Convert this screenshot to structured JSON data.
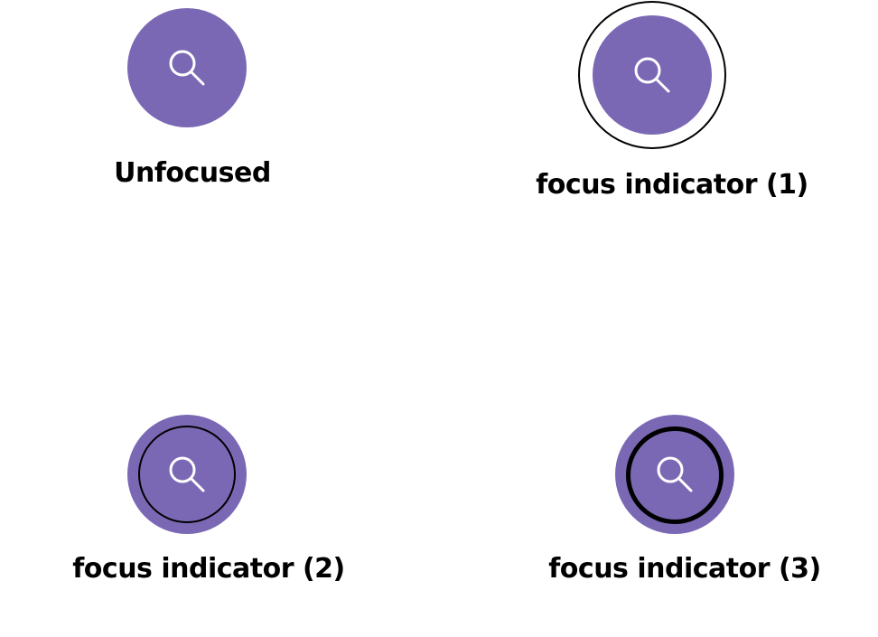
{
  "colors": {
    "button_fill": "#7b68b5",
    "icon_stroke": "#ffffff",
    "focus_ring": "#000000"
  },
  "states": [
    {
      "label": "Unfocused",
      "icon": "search-icon"
    },
    {
      "label": "focus indicator (1)",
      "icon": "search-icon"
    },
    {
      "label": "focus indicator (2)",
      "icon": "search-icon"
    },
    {
      "label": "focus indicator (3)",
      "icon": "search-icon"
    }
  ]
}
